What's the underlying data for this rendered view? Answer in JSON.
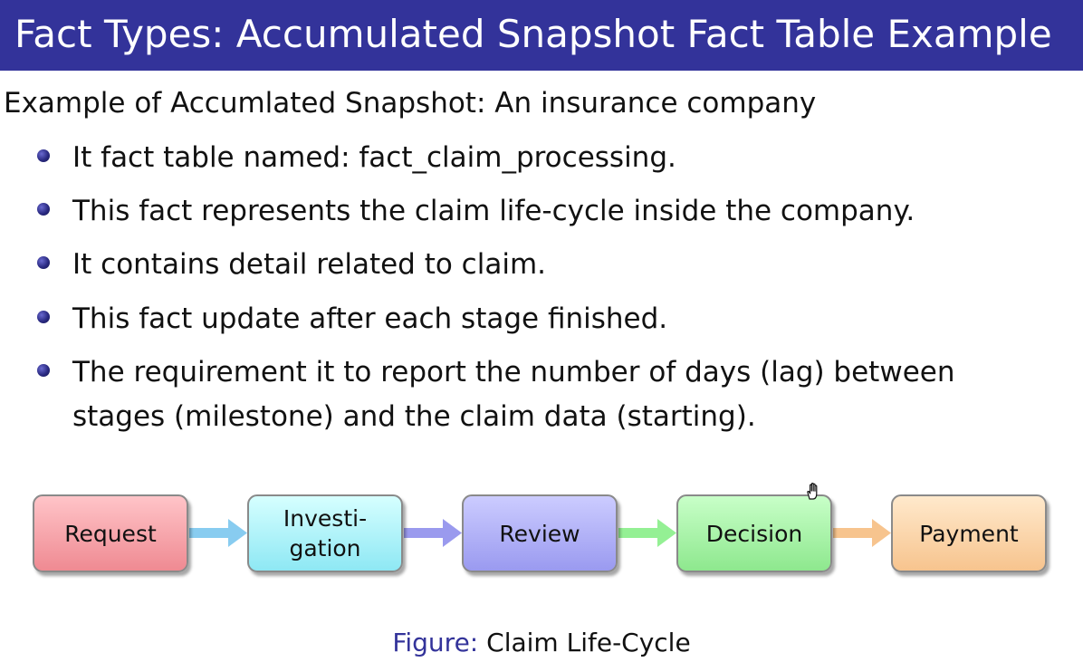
{
  "slide": {
    "title": "Fact Types: Accumulated Snapshot Fact Table Example",
    "intro": "Example of Accumlated Snapshot: An insurance company",
    "bullets": [
      "It fact table named: fact_claim_processing.",
      "This fact represents the claim life-cycle inside the company.",
      "It contains detail related to claim.",
      "This fact update after each stage finished.",
      "The requirement it to report the number of days (lag) between",
      "stages (milestone) and the claim data (starting)."
    ]
  },
  "diagram": {
    "stages": [
      {
        "label": "Request",
        "color_top": "#ffc4c8",
        "color_bottom": "#ef8a92"
      },
      {
        "label": "Investi-\ngation",
        "color_top": "#d6ffff",
        "color_bottom": "#8ee8f4"
      },
      {
        "label": "Review",
        "color_top": "#ccccff",
        "color_bottom": "#9a9af0"
      },
      {
        "label": "Decision",
        "color_top": "#c8ffc8",
        "color_bottom": "#8ee88e"
      },
      {
        "label": "Payment",
        "color_top": "#ffe9cc",
        "color_bottom": "#f7c48e"
      }
    ],
    "arrow_colors": [
      "#88ccf0",
      "#9a9aee",
      "#94f094",
      "#f7c48e"
    ],
    "caption_label": "Figure:",
    "caption_text": "Claim Life-Cycle"
  },
  "colors": {
    "title_bar": "#33339a",
    "bullet": "#2a2a82",
    "caption_label": "#33339a"
  },
  "icons": {
    "cursor": "hand-cursor-icon"
  }
}
